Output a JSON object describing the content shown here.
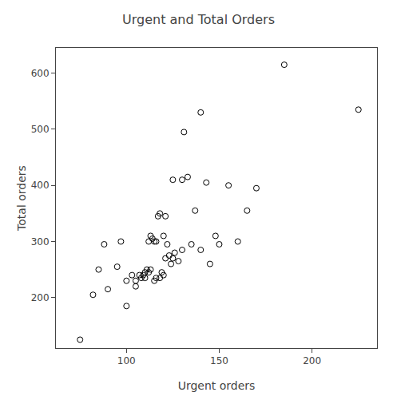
{
  "chart_data": {
    "type": "scatter",
    "title": "Urgent and Total Orders",
    "xlabel": "Urgent orders",
    "ylabel": "Total orders",
    "color": "#000000",
    "marker": "circle-open",
    "grid": false,
    "xlim": [
      62,
      235
    ],
    "ylim": [
      110,
      645
    ],
    "xticks": [
      100,
      150,
      200
    ],
    "yticks": [
      200,
      300,
      400,
      500,
      600
    ],
    "x": [
      75,
      82,
      85,
      88,
      90,
      95,
      97,
      100,
      100,
      103,
      105,
      105,
      107,
      108,
      109,
      110,
      110,
      111,
      112,
      112,
      113,
      113,
      114,
      115,
      115,
      116,
      116,
      117,
      118,
      118,
      119,
      120,
      120,
      121,
      121,
      122,
      123,
      124,
      125,
      125,
      126,
      128,
      130,
      130,
      131,
      133,
      135,
      137,
      140,
      140,
      143,
      145,
      148,
      150,
      155,
      160,
      165,
      170,
      185,
      225
    ],
    "values": [
      125,
      205,
      250,
      295,
      215,
      255,
      300,
      185,
      230,
      240,
      220,
      230,
      240,
      235,
      240,
      235,
      245,
      250,
      245,
      300,
      250,
      310,
      305,
      230,
      300,
      235,
      300,
      345,
      350,
      235,
      245,
      240,
      310,
      270,
      345,
      295,
      275,
      260,
      270,
      410,
      280,
      265,
      285,
      410,
      495,
      415,
      295,
      355,
      285,
      530,
      405,
      260,
      310,
      295,
      400,
      300,
      355,
      395,
      615,
      535
    ]
  }
}
